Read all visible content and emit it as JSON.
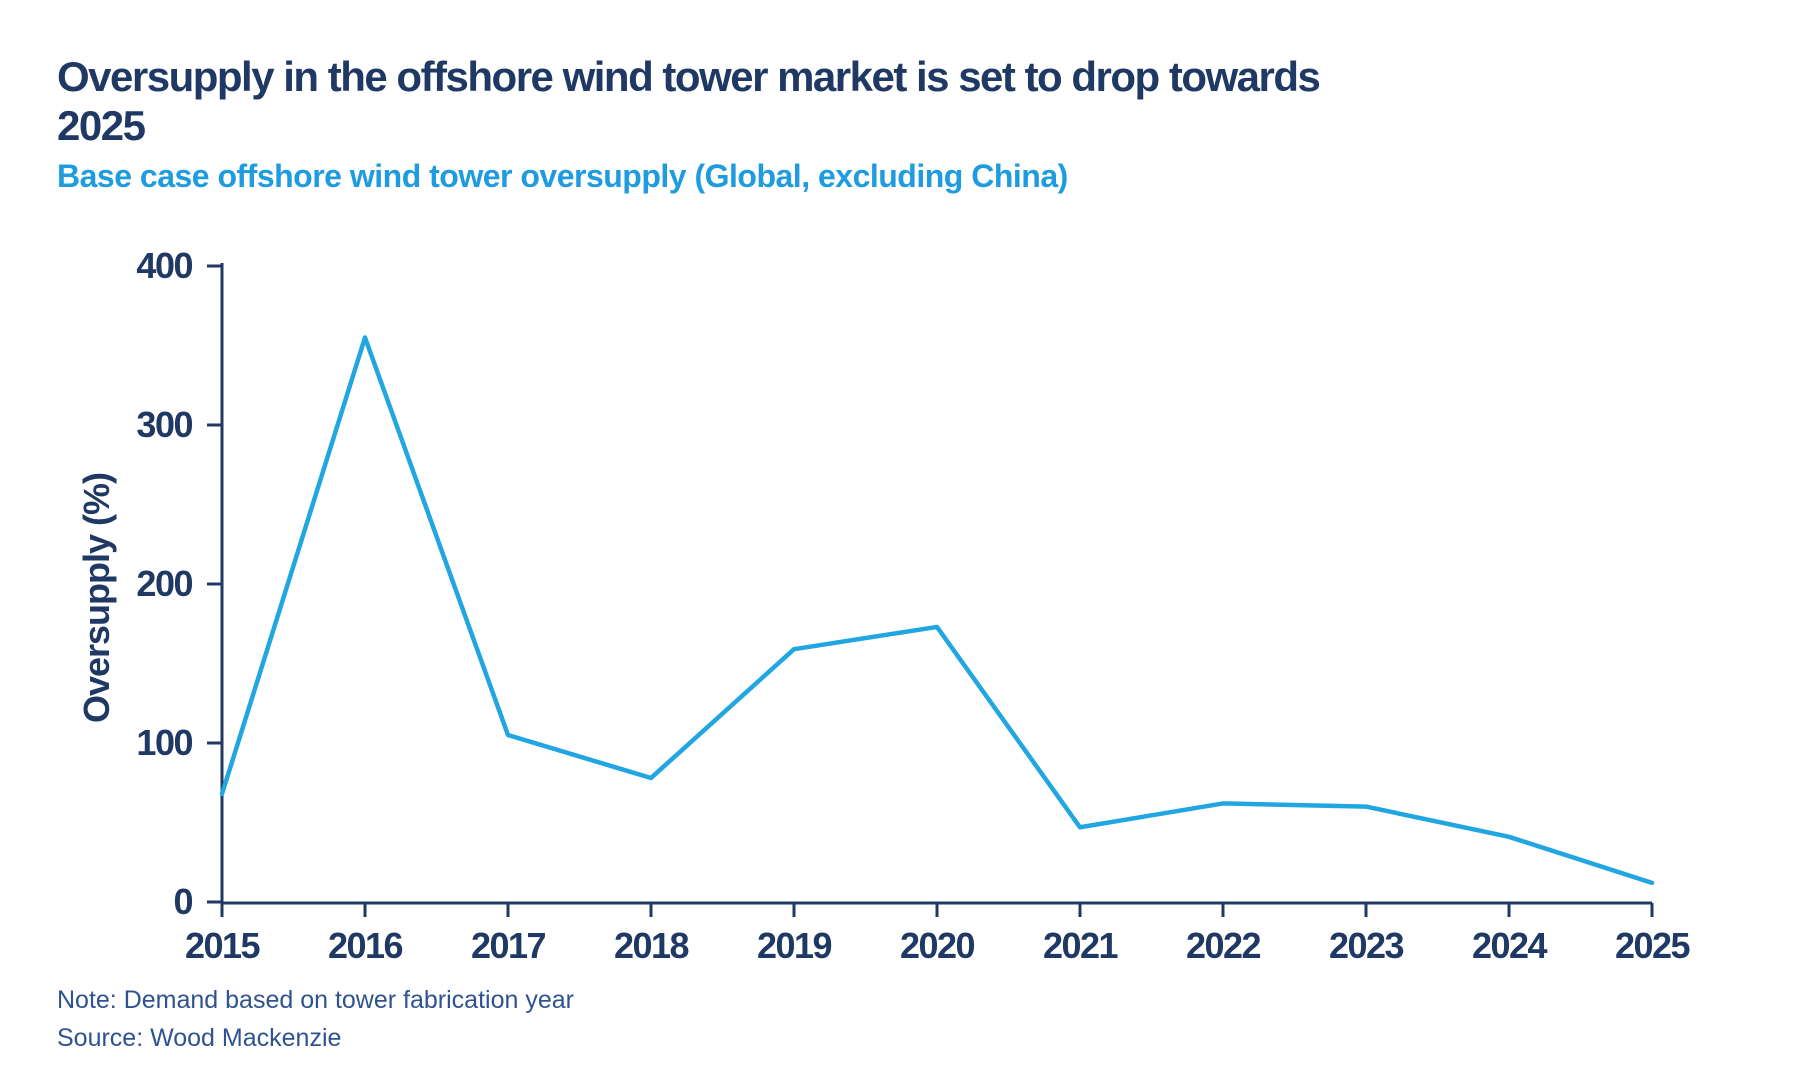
{
  "header": {
    "title_line1": "Oversupply in the offshore wind tower market is set to drop towards",
    "title_line2": "2025",
    "subtitle": "Base case offshore wind tower oversupply (Global, excluding China)"
  },
  "chart_data": {
    "type": "line",
    "title": "Base case offshore wind tower oversupply (Global, excluding China)",
    "categories": [
      "2015",
      "2016",
      "2017",
      "2018",
      "2019",
      "2020",
      "2021",
      "2022",
      "2023",
      "2024",
      "2025"
    ],
    "series": [
      {
        "name": "Base case offshore wind tower oversupply (Global, excluding China)",
        "values": [
          68,
          355,
          105,
          78,
          159,
          173,
          47,
          62,
          60,
          41,
          12
        ]
      }
    ],
    "xlabel": "",
    "ylabel": "Oversupply (%)",
    "ylim": [
      0,
      400
    ],
    "y_ticks": [
      0,
      100,
      200,
      300,
      400
    ],
    "grid": false,
    "legend_position": "none",
    "line_color": "#21a6e2",
    "axis_color": "#1f3864"
  },
  "footer": {
    "note": "Note: Demand based on tower fabrication year",
    "source": "Source: Wood Mackenzie"
  },
  "colors": {
    "background": "#ffffff",
    "title_text": "#1f3864",
    "subtitle_text": "#1e9cdf",
    "tick_text": "#1f3864",
    "footnote_text": "#2f5391"
  }
}
